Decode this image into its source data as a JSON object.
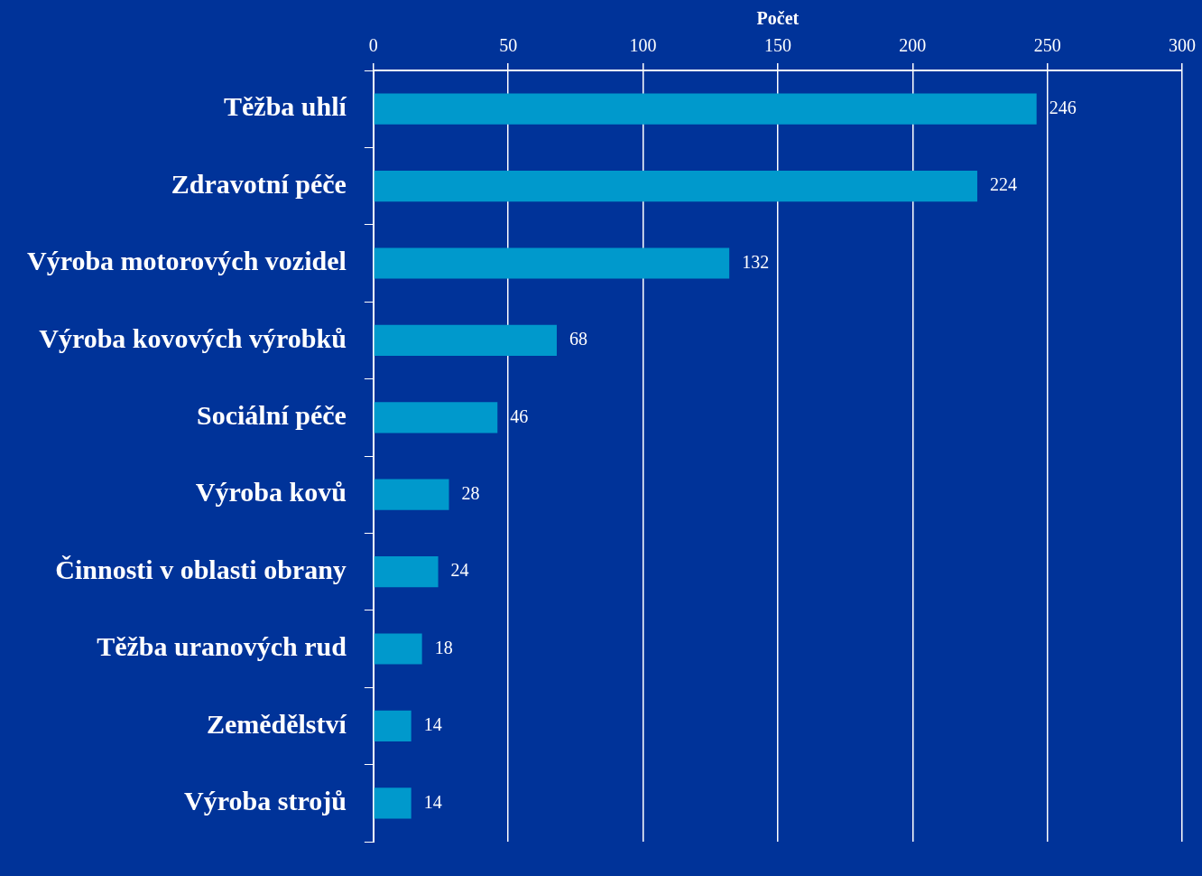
{
  "chart_data": {
    "type": "bar",
    "orientation": "horizontal",
    "xlabel": "Počet",
    "categories": [
      "Těžba uhlí",
      "Zdravotní péče",
      "Výroba motorových vozidel",
      "Výroba kovových výrobků",
      "Sociální péče",
      "Výroba kovů",
      "Činnosti v oblasti obrany",
      "Těžba uranových rud",
      "Zemědělství",
      "Výroba strojů"
    ],
    "values": [
      246,
      224,
      132,
      68,
      46,
      28,
      24,
      18,
      14,
      14
    ],
    "color": "#0099cc",
    "xlim": [
      0,
      300
    ],
    "xticks": [
      0,
      50,
      100,
      150,
      200,
      250,
      300
    ],
    "grid": "x",
    "data_labels": true,
    "legend": false
  }
}
